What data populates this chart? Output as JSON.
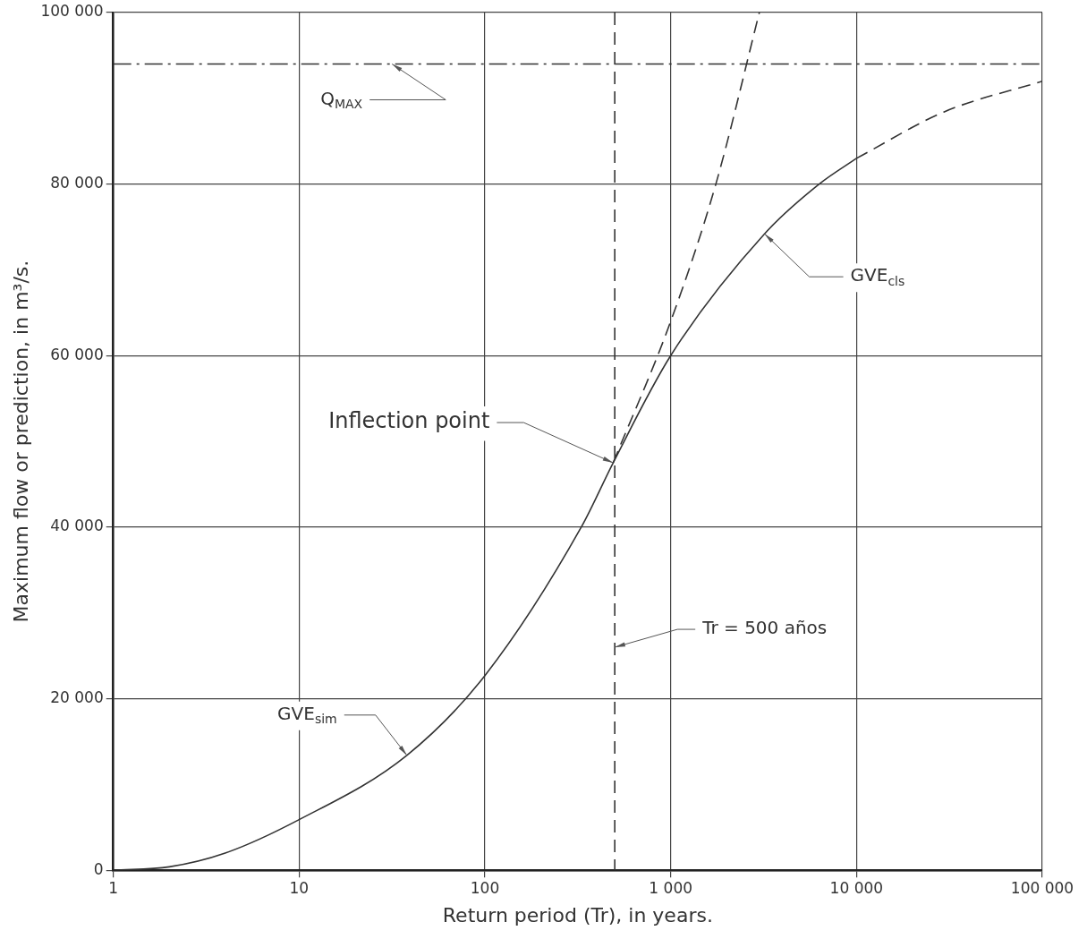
{
  "chart_data": {
    "type": "line",
    "xlabel": "Return period (Tr), in years.",
    "ylabel": "Maximum flow or prediction, in m³/s.",
    "log": "x",
    "grid": true,
    "legend": false,
    "marker": "none",
    "xlim": [
      1,
      100000
    ],
    "xticks": [
      {
        "value": 1,
        "label": "1"
      },
      {
        "value": 10,
        "label": "10"
      },
      {
        "value": 100,
        "label": "100"
      },
      {
        "value": 1000,
        "label": "1 000"
      },
      {
        "value": 10000,
        "label": "10 000"
      },
      {
        "value": 100000,
        "label": "100 000"
      }
    ],
    "ylim": [
      0,
      100000
    ],
    "yticks": [
      {
        "value": 0,
        "label": "0"
      },
      {
        "value": 20000,
        "label": "20 000"
      },
      {
        "value": 40000,
        "label": "40 000"
      },
      {
        "value": 60000,
        "label": "60 000"
      },
      {
        "value": 80000,
        "label": "80 000"
      },
      {
        "value": 100000,
        "label": "100 000"
      }
    ],
    "series": [
      {
        "color": "#333333",
        "line_style": "solid",
        "x": [
          1,
          2,
          4,
          10,
          38,
          100,
          330,
          490,
          1000,
          3200,
          6300,
          10000
        ],
        "values": [
          0,
          400,
          2000,
          5900,
          13400,
          22700,
          40000,
          47500,
          60000,
          74200,
          80000,
          83000
        ]
      },
      {
        "color": "#333333",
        "line_style": "dashed",
        "x": [
          10000,
          29500,
          100000
        ],
        "values": [
          83000,
          88400,
          92000
        ]
      },
      {
        "color": "#333333",
        "line_style": "dashed",
        "x": [
          490,
          1000,
          1750,
          3000
        ],
        "values": [
          47500,
          64000,
          80000,
          100000
        ]
      }
    ],
    "ref_lines": [
      {
        "axis": "y",
        "value": 94000,
        "label": "Q$_{MAX}$",
        "line_style": "dashed",
        "color": "#333333"
      },
      {
        "axis": "x",
        "value": 500,
        "label": "Tr = 500 años",
        "line_style": "dashed",
        "color": "#333333"
      }
    ],
    "annotations": [
      {
        "text": "Inflection point",
        "x": 490,
        "y": 47500
      },
      {
        "text": "GVE$_{cls}$",
        "x": 3200,
        "y": 74200
      },
      {
        "text": "GVE$_{sim}$",
        "x": 38,
        "y": 13400
      }
    ]
  }
}
